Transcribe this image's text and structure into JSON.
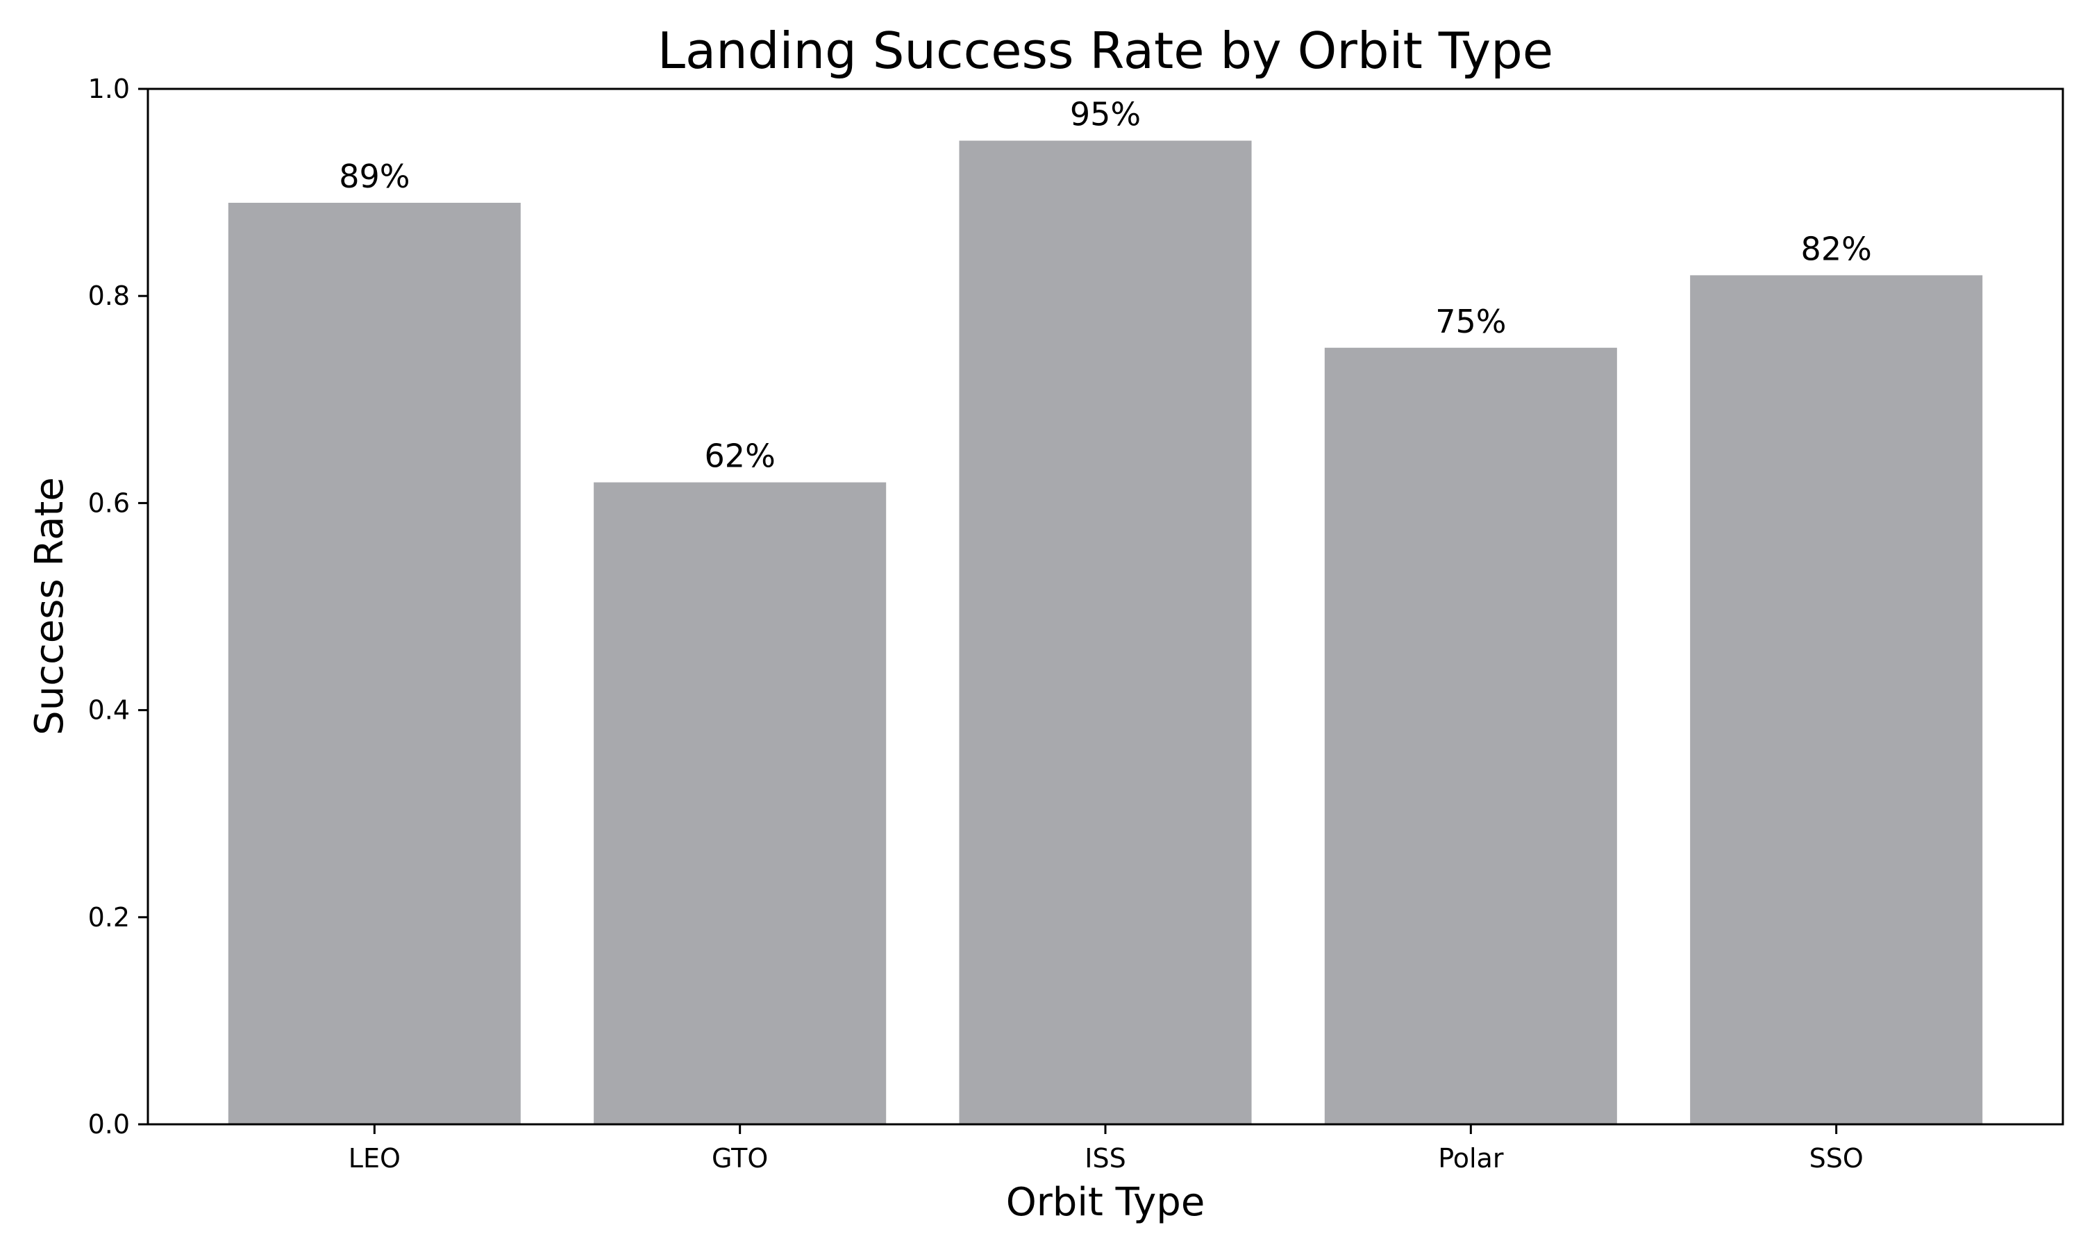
{
  "chart_data": {
    "type": "bar",
    "title": "Landing Success Rate by Orbit Type",
    "xlabel": "Orbit Type",
    "ylabel": "Success Rate",
    "categories": [
      "LEO",
      "GTO",
      "ISS",
      "Polar",
      "SSO"
    ],
    "values": [
      0.89,
      0.62,
      0.95,
      0.75,
      0.82
    ],
    "data_labels": [
      "89%",
      "62%",
      "95%",
      "75%",
      "82%"
    ],
    "ylim": [
      0,
      1.0
    ],
    "yticks": [
      0.0,
      0.2,
      0.4,
      0.6,
      0.8,
      1.0
    ],
    "ytick_labels": [
      "0.0",
      "0.2",
      "0.4",
      "0.6",
      "0.8",
      "1.0"
    ],
    "bar_color": "#a8a9ad",
    "grid": false,
    "legend": "none"
  }
}
